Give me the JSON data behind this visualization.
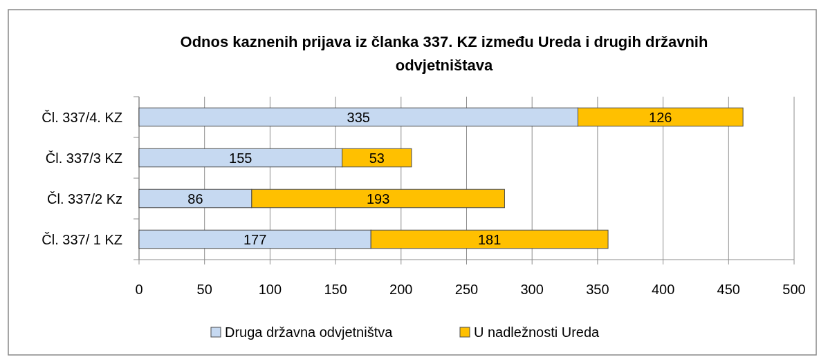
{
  "chart_data": {
    "type": "bar",
    "orientation": "horizontal",
    "stacked": true,
    "title": "Odnos  kaznenih prijava iz članka 337. KZ između Ureda i drugih državnih odvjetništava",
    "categories": [
      "Čl. 337/4. KZ",
      "Čl. 337/3 KZ",
      "Čl. 337/2 Kz",
      "Čl. 337/ 1 KZ"
    ],
    "series": [
      {
        "name": "Druga državna odvjetništva",
        "color": "#c6d9f1",
        "values": [
          335,
          155,
          86,
          177
        ]
      },
      {
        "name": "U nadležnosti Ureda",
        "color": "#ffc000",
        "values": [
          126,
          53,
          193,
          181
        ]
      }
    ],
    "xlim": [
      0,
      500
    ],
    "xticks": [
      0,
      50,
      100,
      150,
      200,
      250,
      300,
      350,
      400,
      450,
      500
    ],
    "grid": "x",
    "legend": "bottom",
    "data_labels": true
  }
}
